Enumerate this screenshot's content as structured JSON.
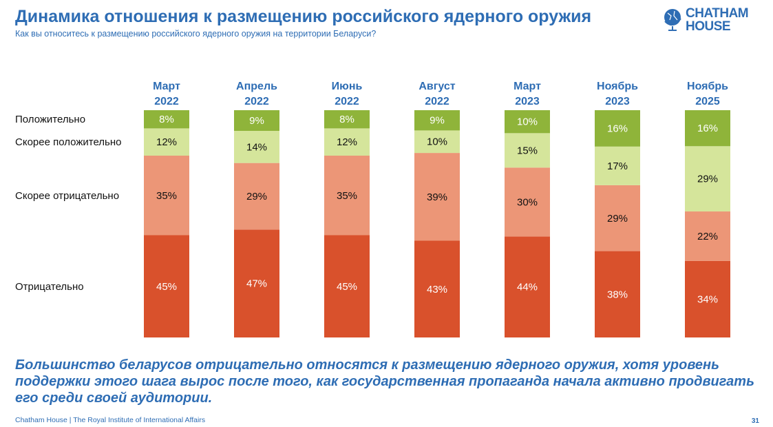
{
  "header": {
    "title": "Динамика отношения к размещению российского ядерного оружия",
    "subtitle": "Как вы относитесь к размещению российского ядерного оружия на территории Беларуси?",
    "logo": "CHATHAM HOUSE",
    "logo_line1": "CHATHAM",
    "logo_line2": "HOUSE"
  },
  "chart_data": {
    "type": "bar",
    "stacked": true,
    "categories": [
      [
        "Март",
        "2022"
      ],
      [
        "Апрель",
        "2022"
      ],
      [
        "Июнь",
        "2022"
      ],
      [
        "Август",
        "2022"
      ],
      [
        "Март",
        "2023"
      ],
      [
        "Ноябрь",
        "2023"
      ],
      [
        "Ноябрь",
        "2025"
      ]
    ],
    "series": [
      {
        "name": "Отрицательно",
        "color": "#d9512c",
        "text_color": "#ffffff",
        "values": [
          45,
          47,
          45,
          43,
          44,
          38,
          34
        ]
      },
      {
        "name": "Скорее отрицательно",
        "color": "#ec9677",
        "text_color": "#111111",
        "values": [
          35,
          29,
          35,
          39,
          30,
          29,
          22
        ]
      },
      {
        "name": "Скорее положительно",
        "color": "#d5e59b",
        "text_color": "#111111",
        "values": [
          12,
          14,
          12,
          10,
          15,
          17,
          29
        ]
      },
      {
        "name": "Положительно",
        "color": "#8fb43a",
        "text_color": "#ffffff",
        "values": [
          8,
          9,
          8,
          9,
          10,
          16,
          16
        ]
      }
    ],
    "value_suffix": "%",
    "legend_placement": "left"
  },
  "conclusion": "Большинство беларусов отрицательно относятся к размещению ядерного оружия, хотя уровень поддержки этого шага вырос после того, как государственная пропаганда начала активно продвигать его среди своей аудитории.",
  "footer": "Chatham House  |  The Royal Institute of International Affairs",
  "page_number": "31"
}
